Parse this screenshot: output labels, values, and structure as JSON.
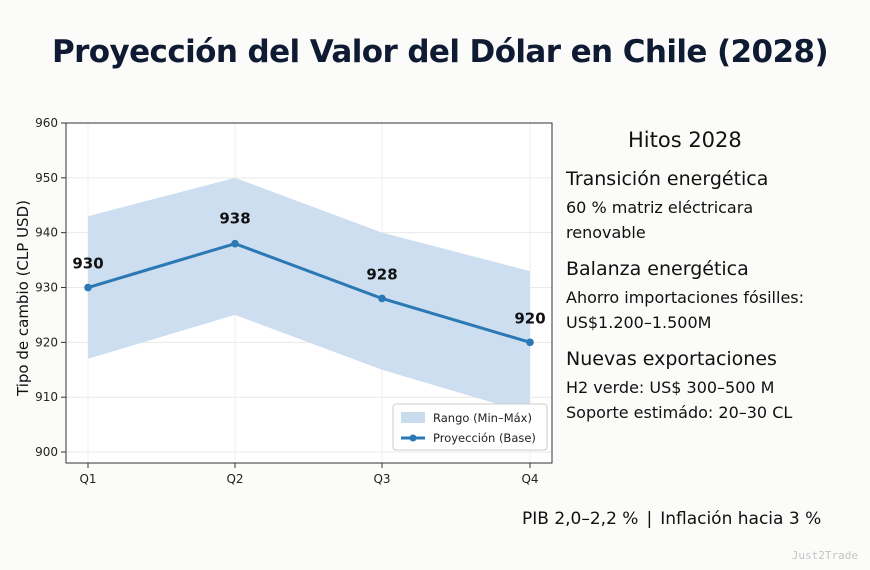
{
  "title": "Proyección del Valor del Dólar en Chile (2028)",
  "chart_data": {
    "type": "line",
    "categories": [
      "Q1",
      "Q2",
      "Q3",
      "Q4"
    ],
    "series": [
      {
        "name": "Proyección (Base)",
        "values": [
          930,
          938,
          928,
          920
        ],
        "color": "#2a78b4"
      }
    ],
    "band": {
      "name": "Rango (Min–Máx)",
      "min": [
        917,
        925,
        915,
        907
      ],
      "max": [
        943,
        950,
        940,
        933
      ],
      "color": "#c9dcee"
    },
    "data_labels": [
      "930",
      "938",
      "928",
      "920"
    ],
    "ylabel": "Tipo de cambio (CLP USD)",
    "xlabel": "",
    "ylim": [
      898,
      960
    ],
    "yticks": [
      900,
      910,
      920,
      930,
      940,
      950,
      960
    ],
    "grid": true,
    "legend": "bottom-right"
  },
  "sidebar": {
    "title": "Hitos 2028",
    "items": [
      {
        "title": "Transición energética",
        "lines": [
          "60 % matriz eléctricara",
          "renovable"
        ]
      },
      {
        "title": "Balanza energética",
        "lines": [
          "Ahorro importaciones fósilles:",
          "US$1.200–1.500M"
        ]
      },
      {
        "title": "Nuevas exportaciones",
        "lines": [
          "H2 verde: US$ 300–500 M",
          "Soporte estimádo: 20–30 CL"
        ]
      }
    ]
  },
  "footer": {
    "left": "PIB 2,0–2,2 %",
    "separator": "|",
    "right": "Inflación hacia 3 %"
  },
  "watermark": "Just2Trade"
}
